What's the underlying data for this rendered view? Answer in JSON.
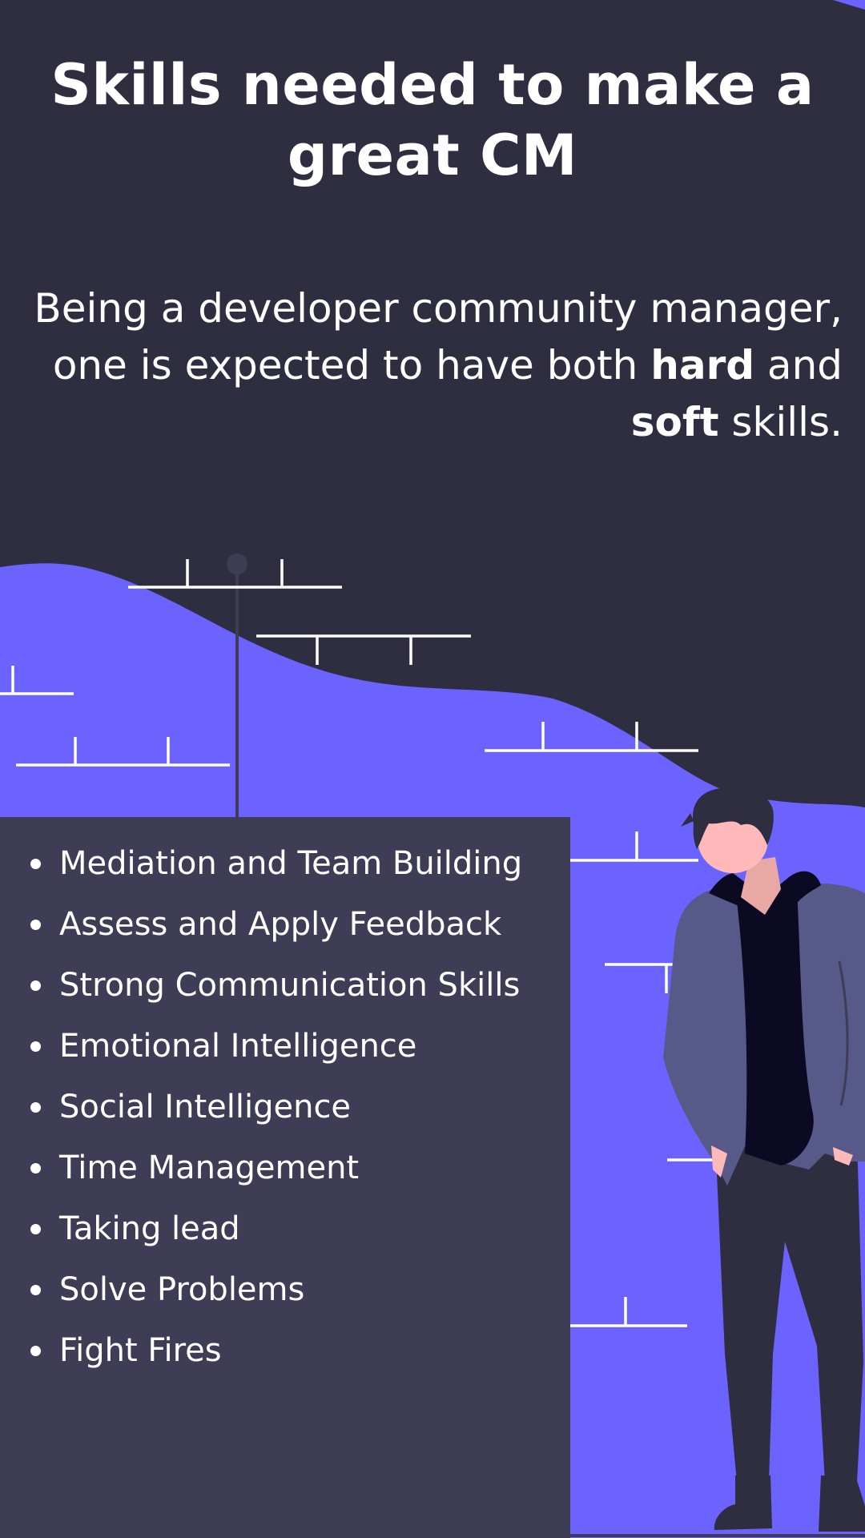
{
  "header": {
    "title": "Skills needed to make a great CM"
  },
  "intro": {
    "line_start": "Being a developer community manager, one is expected to have both ",
    "hard": "hard",
    "middle": " and ",
    "soft": "soft",
    "line_end": " skills."
  },
  "skills": [
    "Mediation and Team Building",
    "Assess and Apply Feedback",
    "Strong Communication Skills",
    "Emotional Intelligence",
    "Social Intelligence",
    "Time Management",
    "Taking lead",
    "Solve Problems",
    "Fight Fires"
  ],
  "colors": {
    "background": "#2f2e41",
    "accent": "#6c63ff",
    "panel": "#3f3d56",
    "text": "#ffffff"
  }
}
